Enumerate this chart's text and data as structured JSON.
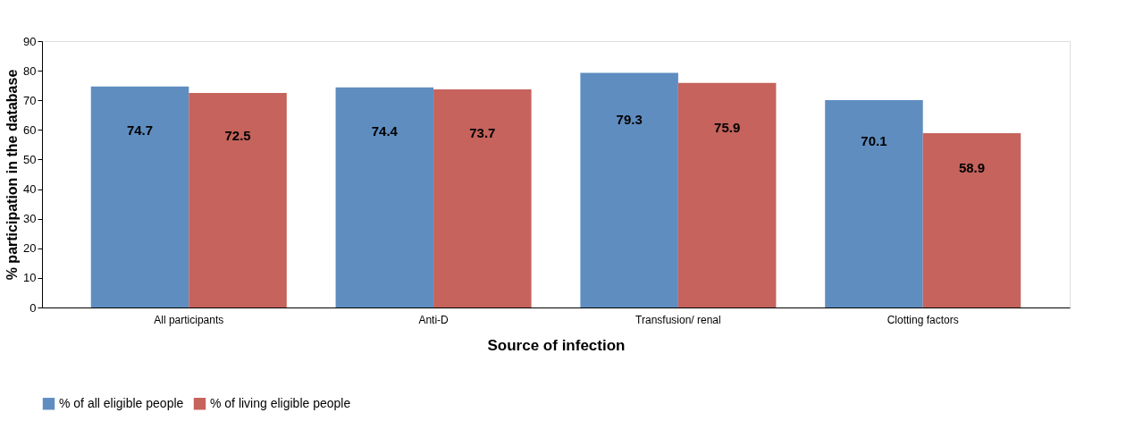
{
  "chart_data": {
    "type": "bar",
    "xlabel": "Source of infection",
    "ylabel": "% participation in the database",
    "categories": [
      "All participants",
      "Anti-D",
      "Transfusion/ renal",
      "Clotting factors"
    ],
    "series": [
      {
        "name": "% of all eligible people",
        "color": "#5f8dc0",
        "values": [
          74.7,
          74.4,
          79.3,
          70.1
        ]
      },
      {
        "name": "% of living eligible people",
        "color": "#c5635c",
        "values": [
          72.5,
          73.7,
          75.9,
          58.9
        ]
      }
    ],
    "ylim": [
      0,
      90
    ],
    "yticks": [
      0,
      10,
      20,
      30,
      40,
      50,
      60,
      70,
      80,
      90
    ],
    "grid": false,
    "legend": "bottom",
    "data_labels": true
  }
}
